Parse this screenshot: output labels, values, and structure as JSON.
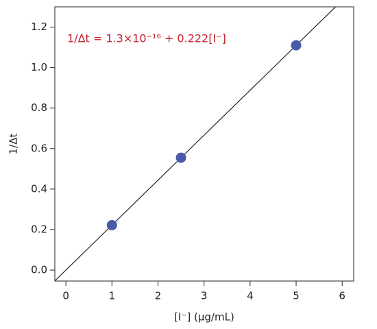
{
  "chart_data": {
    "type": "scatter",
    "annotation": "1/Δt = 1.3×10⁻¹⁶ + 0.222[I⁻]",
    "xlabel": "[I⁻] (μg/mL)",
    "ylabel": "1/Δt",
    "series": [
      {
        "x": [
          1,
          2.5,
          5
        ],
        "values": [
          0.222,
          0.555,
          1.11
        ],
        "color": "#4a5aa8"
      }
    ],
    "fit": {
      "intercept": 1.3e-16,
      "slope": 0.222,
      "color": "#222222"
    },
    "annotation_color": "#c8202e",
    "xlim": [
      -0.24,
      6.25
    ],
    "ylim": [
      -0.054,
      1.3
    ],
    "xticks": [
      0,
      1,
      2,
      3,
      4,
      5,
      6
    ],
    "yticks": [
      {
        "value": 0,
        "label": "0.0"
      },
      0.2,
      0.4,
      0.6,
      0.8,
      {
        "value": 1,
        "label": "1.0"
      },
      1.2
    ],
    "grid": false
  }
}
